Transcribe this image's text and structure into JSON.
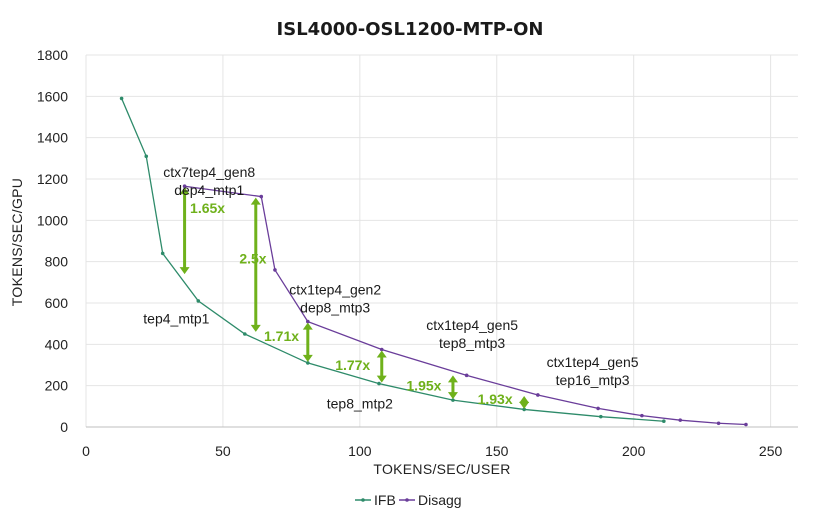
{
  "chart_data": {
    "type": "line",
    "title": "ISL4000-OSL1200-MTP-ON",
    "xlabel": "TOKENS/SEC/USER",
    "ylabel": "TOKENS/SEC/GPU",
    "xlim": [
      0,
      260
    ],
    "ylim": [
      0,
      1800
    ],
    "xticks": [
      0,
      50,
      100,
      150,
      200,
      250
    ],
    "yticks": [
      0,
      200,
      400,
      600,
      800,
      1000,
      1200,
      1400,
      1600,
      1800
    ],
    "grid": true,
    "legend_position": "bottom-center",
    "series": [
      {
        "name": "IFB",
        "color": "#2e8b6a",
        "x": [
          13,
          22,
          28,
          41,
          58,
          81,
          107,
          134,
          160,
          188,
          211
        ],
        "y": [
          1590,
          1310,
          840,
          610,
          450,
          310,
          210,
          130,
          85,
          50,
          28
        ]
      },
      {
        "name": "Disagg",
        "color": "#6a3d9a",
        "x": [
          36,
          64,
          69,
          81,
          108,
          139,
          165,
          187,
          203,
          217,
          231,
          241
        ],
        "y": [
          1165,
          1115,
          760,
          510,
          375,
          250,
          155,
          90,
          55,
          33,
          18,
          12
        ]
      }
    ],
    "annotations": [
      {
        "lines": [
          "ctx7tep4_gen8",
          "dep4_mtp1"
        ],
        "x": 45,
        "y": 1210
      },
      {
        "lines": [
          "tep4_mtp1"
        ],
        "x": 33,
        "y": 500
      },
      {
        "lines": [
          "ctx1tep4_gen2",
          "dep8_mtp3"
        ],
        "x": 91,
        "y": 640
      },
      {
        "lines": [
          "ctx1tep4_gen5",
          "tep8_mtp3"
        ],
        "x": 141,
        "y": 470
      },
      {
        "lines": [
          "ctx1tep4_gen5",
          "tep16_mtp3"
        ],
        "x": 185,
        "y": 290
      },
      {
        "lines": [
          "tep8_mtp2"
        ],
        "x": 100,
        "y": 90
      }
    ],
    "ratio_arrows": [
      {
        "label": "1.65x",
        "x": 36,
        "y_low": 740,
        "y_high": 1160,
        "label_x": 38,
        "label_y": 1060
      },
      {
        "label": "2.5x",
        "x": 62,
        "y_low": 460,
        "y_high": 1110,
        "label_x": 56,
        "label_y": 815
      },
      {
        "label": "1.71x",
        "x": 81,
        "y_low": 315,
        "y_high": 505,
        "label_x": 65,
        "label_y": 440
      },
      {
        "label": "1.77x",
        "x": 108,
        "y_low": 215,
        "y_high": 370,
        "label_x": 91,
        "label_y": 300
      },
      {
        "label": "1.95x",
        "x": 134,
        "y_low": 135,
        "y_high": 250,
        "label_x": 117,
        "label_y": 200
      },
      {
        "label": "1.93x",
        "x": 160,
        "y_low": 88,
        "y_high": 150,
        "label_x": 143,
        "label_y": 135
      }
    ],
    "arrow_color": "#6fb11b"
  }
}
